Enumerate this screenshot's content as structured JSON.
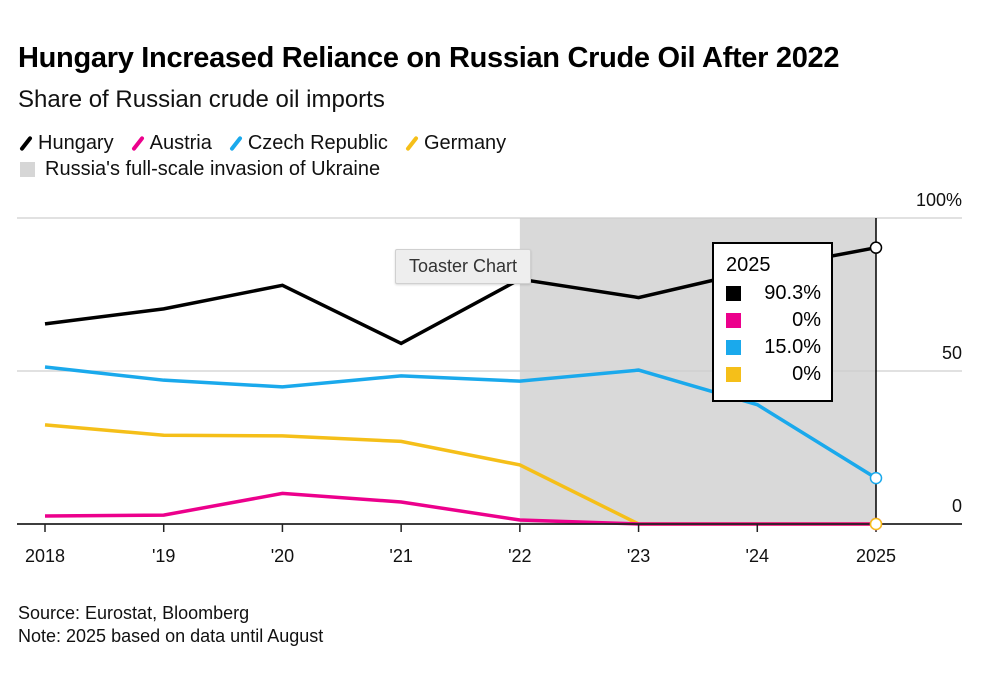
{
  "chart_data": {
    "type": "line",
    "title": "Hungary Increased Reliance on Russian Crude Oil After 2022",
    "subtitle": "Share of Russian crude oil imports",
    "xlabel": "",
    "ylabel": "",
    "x": [
      2018,
      2019,
      2020,
      2021,
      2022,
      2023,
      2024,
      2025
    ],
    "x_tick_labels": [
      "2018",
      "'19",
      "'20",
      "'21",
      "'22",
      "'23",
      "'24",
      "2025"
    ],
    "y_tick_labels": [
      "0",
      "50",
      "100%"
    ],
    "y_ticks": [
      0,
      50,
      100
    ],
    "ylim": [
      0,
      100
    ],
    "grid": true,
    "y_axis_side": "right",
    "series": [
      {
        "name": "Hungary",
        "color": "#000000",
        "values": [
          65.4,
          70.3,
          78.0,
          59.0,
          80.0,
          74.0,
          83.0,
          90.3
        ]
      },
      {
        "name": "Austria",
        "color": "#ec008c",
        "values": [
          2.6,
          2.9,
          10.0,
          7.2,
          1.3,
          0,
          0,
          0
        ]
      },
      {
        "name": "Czech Republic",
        "color": "#1aa9ec",
        "values": [
          51.3,
          47.0,
          44.8,
          48.4,
          46.7,
          50.3,
          39.0,
          15.0
        ]
      },
      {
        "name": "Germany",
        "color": "#f5bf19",
        "values": [
          32.4,
          29.0,
          28.8,
          27.0,
          19.3,
          0,
          0,
          0
        ]
      }
    ],
    "shaded_region": {
      "label": "Russia's full-scale invasion of Ukraine",
      "x_start": 2022,
      "x_end": 2025,
      "color": "#d9d9d9"
    },
    "legend_placement": "top-left",
    "hover_year": 2025
  },
  "legend": {
    "items": [
      {
        "label": "Hungary",
        "color": "#000000"
      },
      {
        "label": "Austria",
        "color": "#ec008c"
      },
      {
        "label": "Czech Republic",
        "color": "#1aa9ec"
      },
      {
        "label": "Germany",
        "color": "#f5bf19"
      }
    ],
    "shade_label": "Russia's full-scale invasion of Ukraine"
  },
  "tooltip": {
    "year": "2025",
    "rows": [
      {
        "color": "#000000",
        "value": "90.3%"
      },
      {
        "color": "#ec008c",
        "value": "0%"
      },
      {
        "color": "#1aa9ec",
        "value": "15.0%"
      },
      {
        "color": "#f5bf19",
        "value": "0%"
      }
    ]
  },
  "toaster_label": "Toaster Chart",
  "footer": {
    "source": "Source: Eurostat, Bloomberg",
    "note": "Note: 2025 based on data until August"
  }
}
